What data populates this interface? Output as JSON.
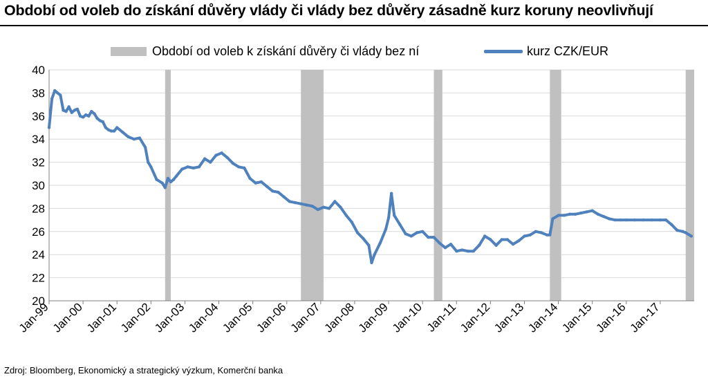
{
  "title": "Období od voleb do získání  důvěry vlády či vlády bez důvěry zásadně kurz koruny neovlivňují",
  "source": "Zdroj: Bloomberg, Ekonomický a strategický výzkum, Komerční banka",
  "colors": {
    "line": "#4f81bd",
    "bands": "#c0c0c0",
    "grid": "#d9d9d9",
    "axis": "#7f7f7f"
  },
  "chart_data": {
    "type": "line",
    "legend": {
      "bands_label": "Období od voleb k získání důvěry či vlády bez ní",
      "line_label": "kurz CZK/EUR",
      "placement": "top"
    },
    "ylim": [
      20,
      40
    ],
    "yticks": [
      "20",
      "22",
      "24",
      "26",
      "28",
      "30",
      "32",
      "34",
      "36",
      "38",
      "40"
    ],
    "xlim": [
      "1999-01",
      "2017-12"
    ],
    "xticks": [
      "Jan-99",
      "Jan-00",
      "Jan-01",
      "Jan-02",
      "Jan-03",
      "Jan-04",
      "Jan-05",
      "Jan-06",
      "Jan-07",
      "Jan-08",
      "Jan-09",
      "Jan-10",
      "Jan-11",
      "Jan-12",
      "Jan-13",
      "Jan-14",
      "Jan-15",
      "Jan-16",
      "Jan-17"
    ],
    "grid": "horizontal",
    "bands": [
      {
        "start": "2002-06",
        "end": "2002-07"
      },
      {
        "start": "2006-06",
        "end": "2007-01"
      },
      {
        "start": "2010-05",
        "end": "2010-07"
      },
      {
        "start": "2013-10",
        "end": "2014-01"
      },
      {
        "start": "2017-10",
        "end": "2017-12"
      }
    ],
    "series": [
      {
        "name": "kurz CZK/EUR",
        "points": [
          [
            "1999-01",
            35.0
          ],
          [
            "1999-02",
            37.5
          ],
          [
            "1999-03",
            38.2
          ],
          [
            "1999-04",
            38.0
          ],
          [
            "1999-05",
            37.8
          ],
          [
            "1999-06",
            36.5
          ],
          [
            "1999-07",
            36.4
          ],
          [
            "1999-08",
            36.8
          ],
          [
            "1999-09",
            36.3
          ],
          [
            "1999-10",
            36.5
          ],
          [
            "1999-11",
            36.6
          ],
          [
            "1999-12",
            36.0
          ],
          [
            "2000-01",
            35.9
          ],
          [
            "2000-02",
            36.1
          ],
          [
            "2000-03",
            36.0
          ],
          [
            "2000-04",
            36.4
          ],
          [
            "2000-05",
            36.2
          ],
          [
            "2000-06",
            35.8
          ],
          [
            "2000-07",
            35.6
          ],
          [
            "2000-08",
            35.5
          ],
          [
            "2000-09",
            35.0
          ],
          [
            "2000-10",
            34.8
          ],
          [
            "2000-11",
            34.7
          ],
          [
            "2000-12",
            34.7
          ],
          [
            "2001-01",
            35.0
          ],
          [
            "2001-03",
            34.6
          ],
          [
            "2001-05",
            34.2
          ],
          [
            "2001-07",
            34.0
          ],
          [
            "2001-09",
            34.1
          ],
          [
            "2001-11",
            33.3
          ],
          [
            "2001-12",
            32.0
          ],
          [
            "2002-01",
            31.6
          ],
          [
            "2002-03",
            30.5
          ],
          [
            "2002-05",
            30.2
          ],
          [
            "2002-06",
            29.8
          ],
          [
            "2002-07",
            30.6
          ],
          [
            "2002-08",
            30.3
          ],
          [
            "2002-09",
            30.5
          ],
          [
            "2002-10",
            30.8
          ],
          [
            "2002-12",
            31.4
          ],
          [
            "2003-02",
            31.6
          ],
          [
            "2003-04",
            31.5
          ],
          [
            "2003-06",
            31.6
          ],
          [
            "2003-08",
            32.3
          ],
          [
            "2003-10",
            32.0
          ],
          [
            "2003-12",
            32.6
          ],
          [
            "2004-02",
            32.8
          ],
          [
            "2004-04",
            32.4
          ],
          [
            "2004-06",
            31.9
          ],
          [
            "2004-08",
            31.6
          ],
          [
            "2004-10",
            31.5
          ],
          [
            "2004-12",
            30.6
          ],
          [
            "2005-02",
            30.2
          ],
          [
            "2005-04",
            30.3
          ],
          [
            "2005-06",
            29.9
          ],
          [
            "2005-08",
            29.5
          ],
          [
            "2005-10",
            29.4
          ],
          [
            "2005-12",
            29.0
          ],
          [
            "2006-02",
            28.6
          ],
          [
            "2006-04",
            28.5
          ],
          [
            "2006-06",
            28.4
          ],
          [
            "2006-08",
            28.3
          ],
          [
            "2006-10",
            28.2
          ],
          [
            "2006-12",
            27.9
          ],
          [
            "2007-02",
            28.1
          ],
          [
            "2007-04",
            28.0
          ],
          [
            "2007-06",
            28.6
          ],
          [
            "2007-08",
            28.1
          ],
          [
            "2007-10",
            27.4
          ],
          [
            "2007-12",
            26.8
          ],
          [
            "2008-02",
            25.9
          ],
          [
            "2008-04",
            25.4
          ],
          [
            "2008-06",
            24.8
          ],
          [
            "2008-07",
            23.3
          ],
          [
            "2008-08",
            24.0
          ],
          [
            "2008-10",
            25.0
          ],
          [
            "2008-12",
            26.2
          ],
          [
            "2009-01",
            27.2
          ],
          [
            "2009-02",
            29.3
          ],
          [
            "2009-03",
            27.4
          ],
          [
            "2009-05",
            26.6
          ],
          [
            "2009-07",
            25.8
          ],
          [
            "2009-09",
            25.6
          ],
          [
            "2009-11",
            25.9
          ],
          [
            "2010-01",
            26.0
          ],
          [
            "2010-03",
            25.5
          ],
          [
            "2010-05",
            25.5
          ],
          [
            "2010-07",
            25.0
          ],
          [
            "2010-09",
            24.6
          ],
          [
            "2010-11",
            24.9
          ],
          [
            "2011-01",
            24.3
          ],
          [
            "2011-03",
            24.4
          ],
          [
            "2011-05",
            24.3
          ],
          [
            "2011-07",
            24.3
          ],
          [
            "2011-09",
            24.8
          ],
          [
            "2011-11",
            25.6
          ],
          [
            "2012-01",
            25.3
          ],
          [
            "2012-03",
            24.8
          ],
          [
            "2012-05",
            25.3
          ],
          [
            "2012-07",
            25.3
          ],
          [
            "2012-09",
            24.9
          ],
          [
            "2012-11",
            25.2
          ],
          [
            "2013-01",
            25.6
          ],
          [
            "2013-03",
            25.7
          ],
          [
            "2013-05",
            26.0
          ],
          [
            "2013-07",
            25.9
          ],
          [
            "2013-09",
            25.7
          ],
          [
            "2013-10",
            25.7
          ],
          [
            "2013-11",
            27.1
          ],
          [
            "2014-01",
            27.4
          ],
          [
            "2014-03",
            27.4
          ],
          [
            "2014-05",
            27.5
          ],
          [
            "2014-07",
            27.5
          ],
          [
            "2014-09",
            27.6
          ],
          [
            "2014-11",
            27.7
          ],
          [
            "2015-01",
            27.8
          ],
          [
            "2015-03",
            27.5
          ],
          [
            "2015-05",
            27.3
          ],
          [
            "2015-07",
            27.1
          ],
          [
            "2015-09",
            27.0
          ],
          [
            "2015-11",
            27.0
          ],
          [
            "2016-01",
            27.0
          ],
          [
            "2016-04",
            27.0
          ],
          [
            "2016-07",
            27.0
          ],
          [
            "2016-10",
            27.0
          ],
          [
            "2017-01",
            27.0
          ],
          [
            "2017-03",
            27.0
          ],
          [
            "2017-05",
            26.6
          ],
          [
            "2017-07",
            26.1
          ],
          [
            "2017-09",
            26.0
          ],
          [
            "2017-10",
            25.9
          ],
          [
            "2017-12",
            25.6
          ]
        ]
      }
    ]
  }
}
